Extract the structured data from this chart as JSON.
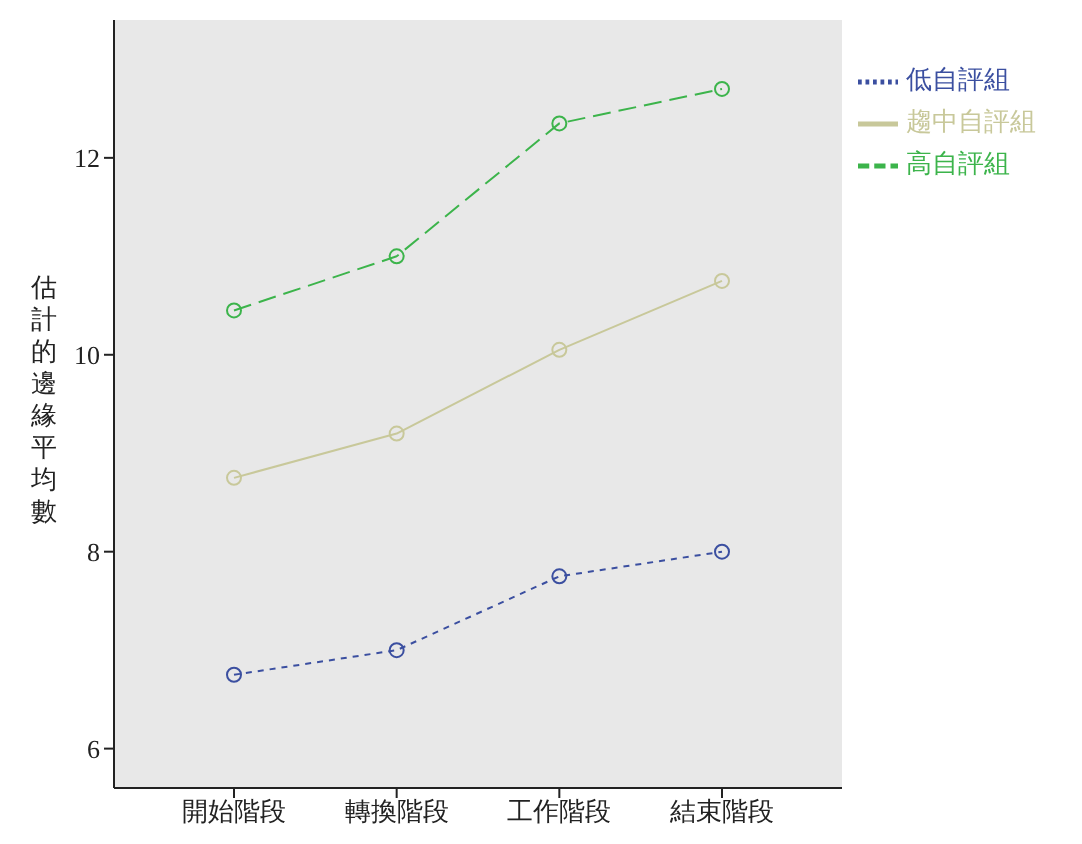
{
  "chart_data": {
    "type": "line",
    "ylabel": "估計的邊緣平均數",
    "categories": [
      "開始階段",
      "轉換階段",
      "工作階段",
      "結束階段"
    ],
    "series": [
      {
        "name": "低自評組",
        "color": "#3b4fa0",
        "line_style": "dotted",
        "values": [
          6.75,
          7.0,
          7.75,
          8.0
        ]
      },
      {
        "name": "高自評組",
        "color": "#3cb44b",
        "line_style": "dashed",
        "values": [
          10.45,
          11.0,
          12.35,
          12.7
        ]
      },
      {
        "name": "趨中自評組",
        "color": "#c8c89a",
        "line_style": "solid",
        "values": [
          8.75,
          9.2,
          10.05,
          10.75
        ]
      }
    ],
    "ylim": [
      5.6,
      13.4
    ],
    "yticks": [
      6,
      8,
      10,
      12
    ],
    "grid": false,
    "legend": "top right",
    "marker": "circle"
  }
}
